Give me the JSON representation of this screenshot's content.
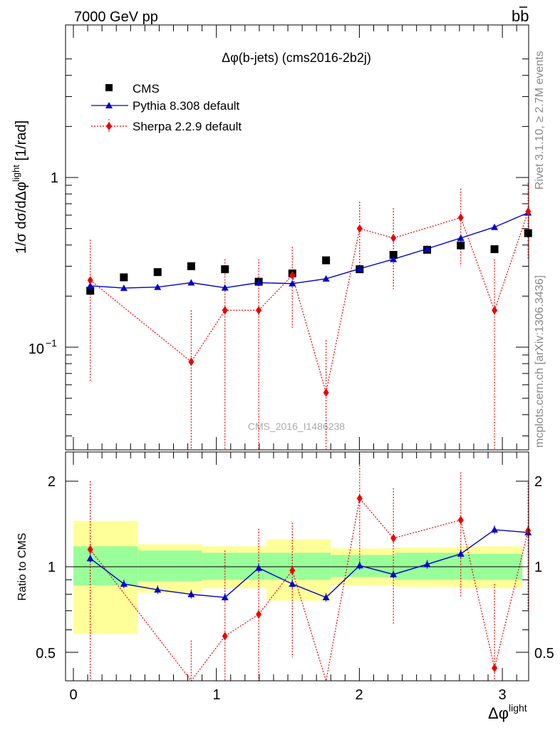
{
  "header": {
    "left": "7000 GeV pp",
    "right_base": "b",
    "right_bar": "b"
  },
  "side_text": {
    "rivet": "Rivet 3.1.10, ≥ 2.7M events",
    "mcplots": "mcplots.cern.ch [arXiv:1306.3436]"
  },
  "top_panel": {
    "title": "Δφ(b-jets) (cms2016-2b2j)",
    "ylabel_main": "1/σ dσ/dΔφ",
    "ylabel_sup": "light",
    "ylabel_unit": " [1/rad]",
    "watermark": "CMS_2016_I1486238",
    "ytick_major": [
      "10",
      "1"
    ],
    "ytick_exp": "−1"
  },
  "bottom_panel": {
    "ylabel": "Ratio to CMS",
    "yticks": [
      "0.5",
      "1",
      "2"
    ],
    "xticks": [
      "0",
      "1",
      "2",
      "3"
    ],
    "xlabel_main": "Δφ",
    "xlabel_sup": "light"
  },
  "legend": {
    "cms": "CMS",
    "pythia": "Pythia 8.308 default",
    "sherpa": "Sherpa 2.2.9 default"
  },
  "colors": {
    "cms": "#000000",
    "pythia": "#0000cc",
    "sherpa": "#ee0000",
    "band_inner": "#99ff99",
    "band_outer": "#ffff99"
  },
  "chart_data": {
    "type": "scatter",
    "x_label": "Δφ light",
    "y_scale": "log",
    "xlim": [
      -0.1,
      3.2
    ],
    "ylim_top": [
      0.025,
      6
    ],
    "ylim_bottom": [
      0.4,
      2.4
    ],
    "x": [
      0.118,
      0.353,
      0.589,
      0.824,
      1.06,
      1.296,
      1.531,
      1.767,
      2.002,
      2.238,
      2.474,
      2.709,
      2.945,
      3.18
    ],
    "series": [
      {
        "name": "CMS",
        "values": [
          0.215,
          0.258,
          0.277,
          0.3,
          0.288,
          0.243,
          0.272,
          0.325,
          0.288,
          0.35,
          0.375,
          0.398,
          0.378,
          0.47
        ]
      },
      {
        "name": "Pythia 8.308 default",
        "values": [
          0.23,
          0.223,
          0.226,
          0.24,
          0.224,
          0.24,
          0.237,
          0.253,
          0.29,
          0.33,
          0.38,
          0.44,
          0.51,
          0.62
        ]
      },
      {
        "name": "Sherpa 2.2.9 default",
        "values": [
          0.248,
          null,
          null,
          0.082,
          0.165,
          0.165,
          0.265,
          0.054,
          0.5,
          0.44,
          null,
          0.58,
          0.165,
          0.63
        ],
        "err_low": [
          0.062,
          null,
          null,
          0.025,
          0.025,
          0.025,
          0.13,
          0.025,
          0.29,
          0.22,
          null,
          0.3,
          0.025,
          0.33
        ],
        "err_high": [
          0.43,
          null,
          null,
          0.165,
          0.33,
          0.33,
          0.39,
          0.11,
          0.72,
          0.66,
          null,
          0.86,
          0.33,
          0.93
        ]
      }
    ],
    "ratio": {
      "pythia": [
        1.07,
        0.87,
        0.83,
        0.8,
        0.78,
        0.99,
        0.87,
        0.78,
        1.01,
        0.94,
        1.02,
        1.11,
        1.35,
        1.32
      ],
      "sherpa": [
        1.15,
        null,
        null,
        0.27,
        0.57,
        0.68,
        0.97,
        0.17,
        1.74,
        1.26,
        null,
        1.46,
        0.44,
        1.34
      ],
      "sherpa_err_low": [
        0.29,
        null,
        null,
        0.08,
        0.08,
        0.08,
        0.48,
        0.08,
        1.0,
        0.63,
        null,
        0.78,
        0.08,
        0.7
      ],
      "sherpa_err_high": [
        2.0,
        null,
        null,
        0.55,
        1.14,
        1.36,
        1.43,
        0.34,
        2.5,
        1.89,
        null,
        2.15,
        0.87,
        1.98
      ]
    },
    "band_edges": [
      0.0,
      0.45,
      0.9,
      1.35,
      1.8,
      2.25,
      2.7,
      3.14
    ],
    "band_inner": [
      [
        0.86,
        1.18
      ],
      [
        0.89,
        1.14
      ],
      [
        0.9,
        1.12
      ],
      [
        0.9,
        1.12
      ],
      [
        0.92,
        1.1
      ],
      [
        0.9,
        1.12
      ],
      [
        0.9,
        1.11
      ]
    ],
    "band_outer": [
      [
        0.58,
        1.45
      ],
      [
        0.81,
        1.2
      ],
      [
        0.84,
        1.18
      ],
      [
        0.76,
        1.25
      ],
      [
        0.86,
        1.16
      ],
      [
        0.85,
        1.17
      ],
      [
        0.84,
        1.18
      ]
    ]
  }
}
